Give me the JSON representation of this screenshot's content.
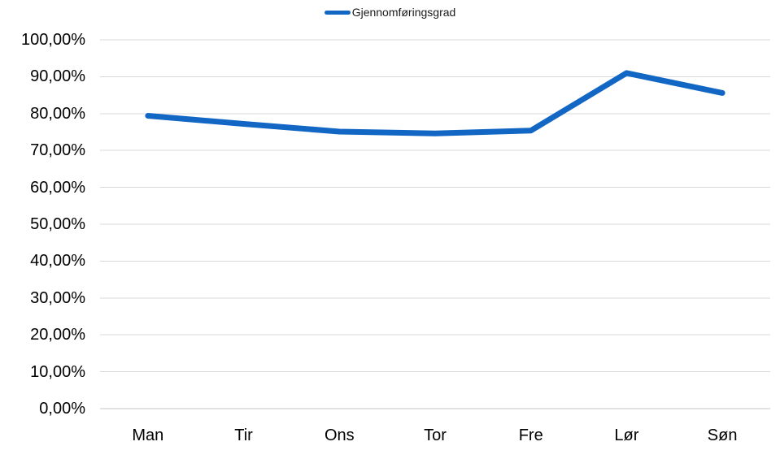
{
  "chart_data": {
    "type": "line",
    "categories": [
      "Man",
      "Tir",
      "Ons",
      "Tor",
      "Fre",
      "Lør",
      "Søn"
    ],
    "series": [
      {
        "name": "Gjennomføringsgrad",
        "values": [
          79.4,
          77.2,
          75.1,
          74.6,
          75.4,
          91.0,
          85.6
        ]
      }
    ],
    "title": "",
    "xlabel": "",
    "ylabel": "",
    "ylim": [
      0,
      100
    ],
    "y_tick_step": 10,
    "y_tick_labels": [
      "0,00%",
      "10,00%",
      "20,00%",
      "30,00%",
      "40,00%",
      "50,00%",
      "60,00%",
      "70,00%",
      "80,00%",
      "90,00%",
      "100,00%"
    ],
    "grid": true,
    "legend_position": "top-center"
  },
  "legend": {
    "label": "Gjennomføringsgrad"
  },
  "colors": {
    "line": "#1266C4",
    "gridline": "#D9D9D9",
    "axis_line": "#C6C6C6",
    "text": "#000000",
    "background": "#FFFFFF"
  }
}
